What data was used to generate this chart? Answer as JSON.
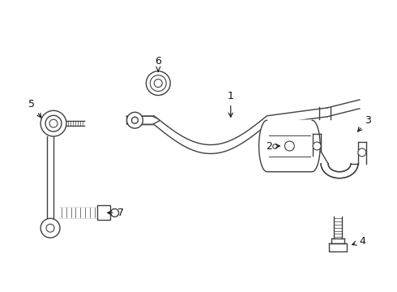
{
  "bg_color": "#ffffff",
  "line_color": "#404040",
  "label_color": "#111111",
  "fig_width": 4.9,
  "fig_height": 3.6,
  "dpi": 100
}
